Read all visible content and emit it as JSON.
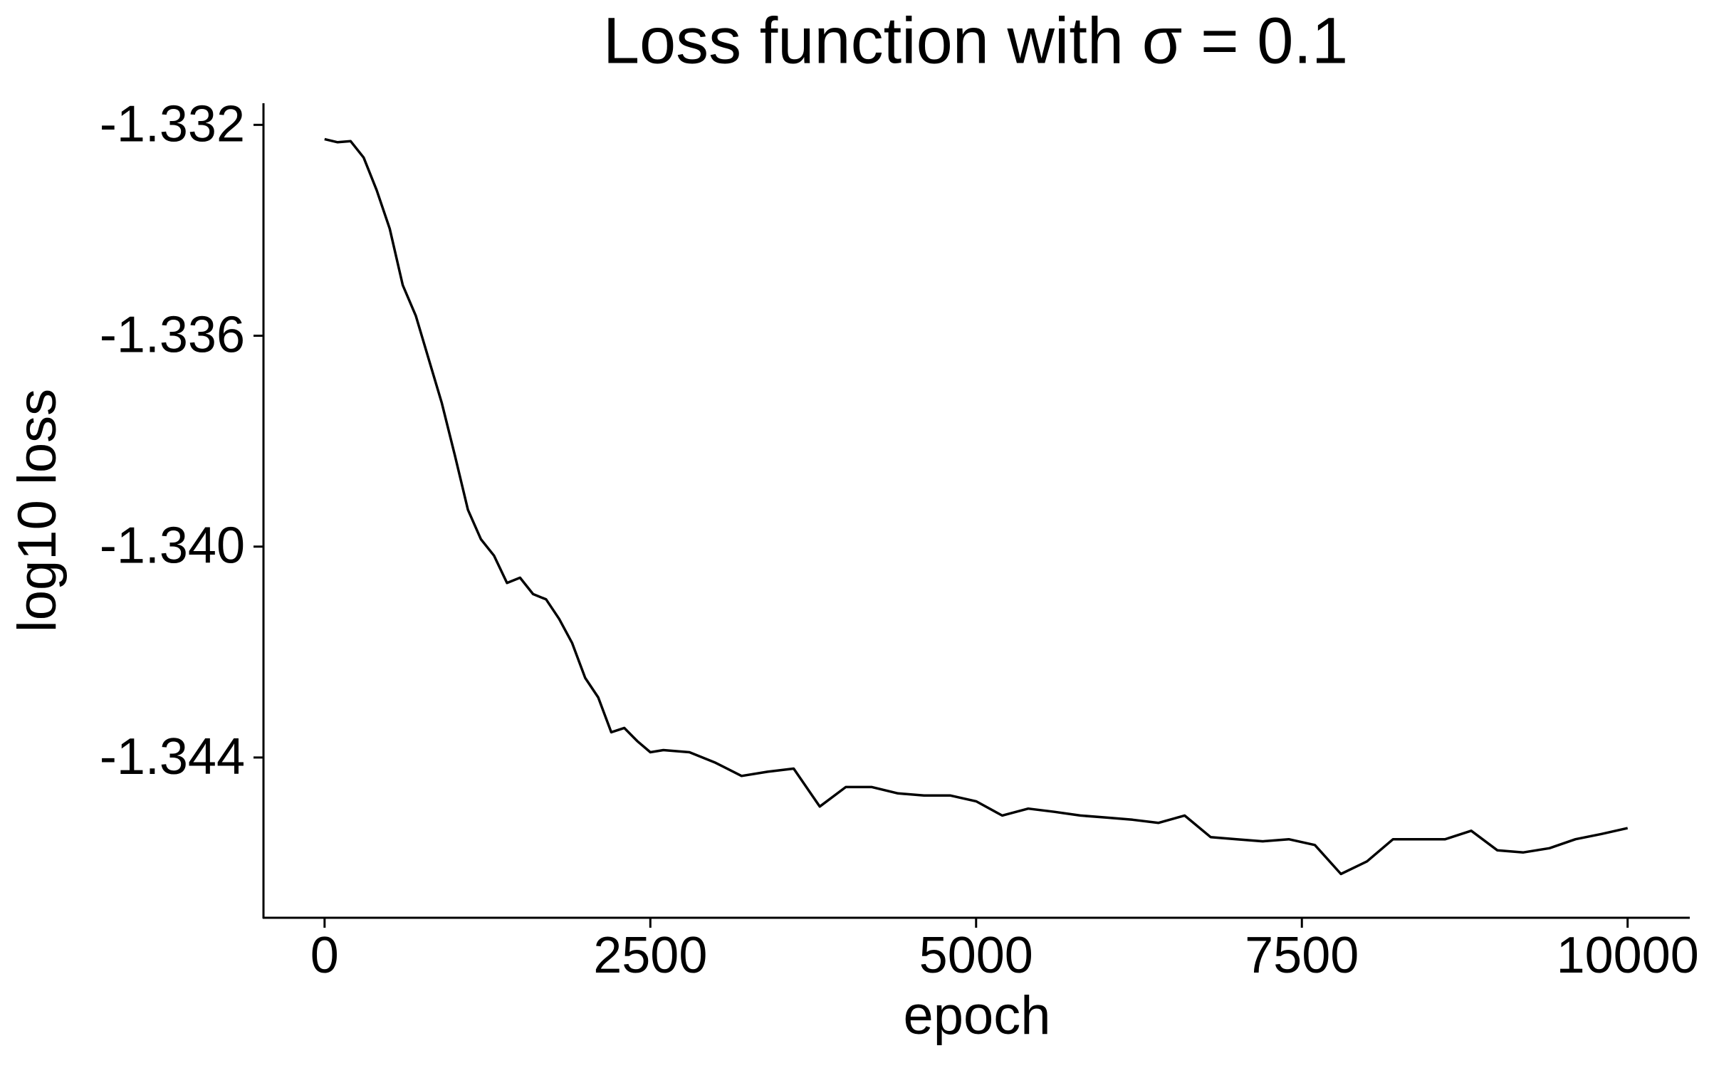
{
  "chart_data": {
    "type": "line",
    "title": "Loss function with σ = 0.1",
    "x_label": "epoch",
    "y_label": "log10 loss",
    "x": [
      0,
      100,
      200,
      300,
      400,
      500,
      600,
      700,
      800,
      900,
      1000,
      1100,
      1200,
      1300,
      1400,
      1500,
      1600,
      1700,
      1800,
      1900,
      2000,
      2100,
      2200,
      2300,
      2400,
      2500,
      2600,
      2800,
      3000,
      3200,
      3400,
      3600,
      3800,
      4000,
      4200,
      4400,
      4600,
      4800,
      5000,
      5200,
      5400,
      5600,
      5800,
      6000,
      6200,
      6400,
      6600,
      6800,
      7000,
      7200,
      7400,
      7600,
      7800,
      8000,
      8200,
      8400,
      8600,
      8800,
      9000,
      9200,
      9400,
      9600,
      9800,
      10000
    ],
    "values": [
      -1.33227,
      -1.33233,
      -1.33231,
      -1.33262,
      -1.33324,
      -1.33397,
      -1.33504,
      -1.33562,
      -1.33645,
      -1.33728,
      -1.33827,
      -1.3393,
      -1.33986,
      -1.34017,
      -1.34069,
      -1.34059,
      -1.3409,
      -1.341,
      -1.34137,
      -1.34183,
      -1.34249,
      -1.34286,
      -1.34352,
      -1.34344,
      -1.34369,
      -1.3439,
      -1.34386,
      -1.3439,
      -1.3441,
      -1.34435,
      -1.34427,
      -1.34421,
      -1.34493,
      -1.34456,
      -1.34456,
      -1.34468,
      -1.34472,
      -1.34472,
      -1.34483,
      -1.3451,
      -1.34497,
      -1.34503,
      -1.3451,
      -1.34514,
      -1.34518,
      -1.34524,
      -1.3451,
      -1.34551,
      -1.34555,
      -1.34559,
      -1.34555,
      -1.34566,
      -1.34621,
      -1.34597,
      -1.34555,
      -1.34555,
      -1.34555,
      -1.34539,
      -1.34576,
      -1.3458,
      -1.34572,
      -1.34555,
      -1.34545,
      -1.34534
    ],
    "color": "#000000",
    "xlim": [
      -469,
      10477
    ],
    "ylim": [
      -1.34704,
      -1.33159
    ],
    "xticks": [
      0,
      2500,
      5000,
      7500,
      10000
    ],
    "yticks": [
      -1.332,
      -1.336,
      {
        "value": -1.34,
        "label": "-1.340"
      },
      -1.344
    ],
    "grid": false
  }
}
